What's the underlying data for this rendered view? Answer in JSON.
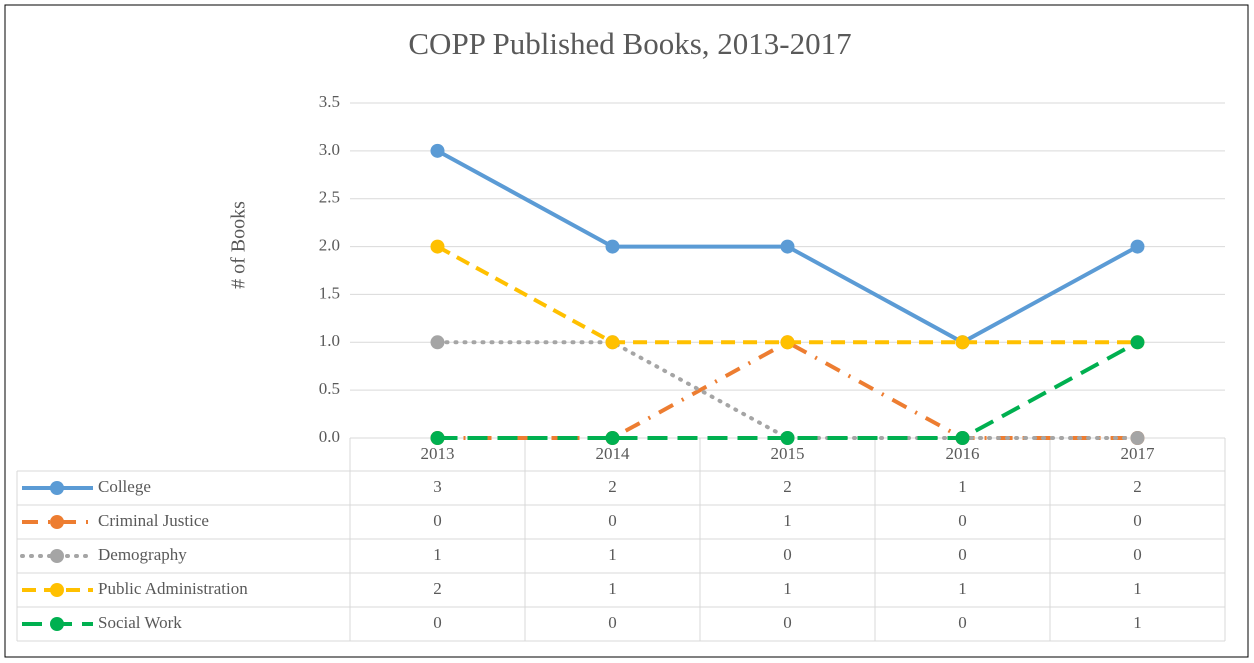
{
  "chart_data": {
    "type": "line",
    "title": "COPP Published Books, 2013-2017",
    "y_label": "# of Books",
    "categories": [
      "2013",
      "2014",
      "2015",
      "2016",
      "2017"
    ],
    "ylim": [
      0,
      3.5
    ],
    "yticks": [
      {
        "value": 0,
        "label": "0.0"
      },
      {
        "value": 0.5,
        "label": "0.5"
      },
      {
        "value": 1,
        "label": "1.0"
      },
      {
        "value": 1.5,
        "label": "1.5"
      },
      {
        "value": 2,
        "label": "2.0"
      },
      {
        "value": 2.5,
        "label": "2.5"
      },
      {
        "value": 3,
        "label": "3.0"
      },
      {
        "value": 3.5,
        "label": "3.5"
      }
    ],
    "grid": true,
    "data_table": true,
    "series": [
      {
        "name": "College",
        "color": "#5b9bd5",
        "line_style": "solid",
        "values": [
          3,
          2,
          2,
          1,
          2
        ]
      },
      {
        "name": "Criminal Justice",
        "color": "#ed7d31",
        "line_style": "dash-dot",
        "values": [
          0,
          0,
          1,
          0,
          0
        ]
      },
      {
        "name": "Demography",
        "color": "#a5a5a5",
        "line_style": "dot",
        "values": [
          1,
          1,
          0,
          0,
          0
        ]
      },
      {
        "name": "Public Administration",
        "color": "#ffc000",
        "line_style": "dash",
        "values": [
          2,
          1,
          1,
          1,
          1
        ]
      },
      {
        "name": "Social Work",
        "color": "#00b050",
        "line_style": "long-dash",
        "values": [
          0,
          0,
          0,
          0,
          1
        ]
      }
    ]
  }
}
